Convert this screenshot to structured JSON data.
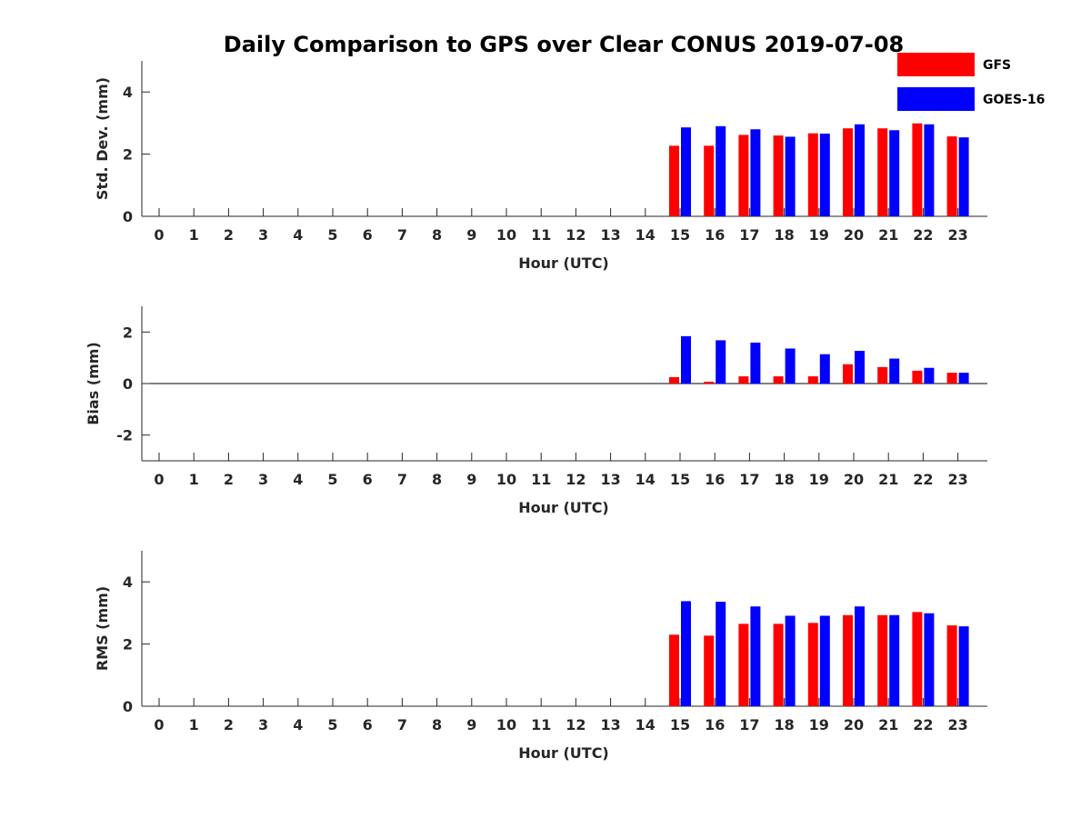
{
  "chart_data": {
    "type": "bar",
    "title": "Daily Comparison to GPS over Clear CONUS 2019-07-08",
    "categories": [
      "0",
      "1",
      "2",
      "3",
      "4",
      "5",
      "6",
      "7",
      "8",
      "9",
      "10",
      "11",
      "12",
      "13",
      "14",
      "15",
      "16",
      "17",
      "18",
      "19",
      "20",
      "21",
      "22",
      "23"
    ],
    "legend": {
      "position": "top-right",
      "entries": [
        "GFS",
        "GOES-16"
      ]
    },
    "colors": {
      "GFS": "#ff0000",
      "GOES-16": "#0000ff",
      "axis": "#262626"
    },
    "panels": [
      {
        "ylabel": "Std. Dev. (mm)",
        "xlabel": "Hour (UTC)",
        "ylim": [
          0,
          5
        ],
        "yticks": [
          0,
          2,
          4
        ],
        "zero_line": false,
        "series": [
          {
            "name": "GFS",
            "values": [
              null,
              null,
              null,
              null,
              null,
              null,
              null,
              null,
              null,
              null,
              null,
              null,
              null,
              null,
              null,
              2.27,
              2.27,
              2.62,
              2.6,
              2.67,
              2.83,
              2.83,
              2.99,
              2.57
            ]
          },
          {
            "name": "GOES-16",
            "values": [
              null,
              null,
              null,
              null,
              null,
              null,
              null,
              null,
              null,
              null,
              null,
              null,
              null,
              null,
              null,
              2.86,
              2.9,
              2.8,
              2.56,
              2.66,
              2.96,
              2.77,
              2.96,
              2.54
            ]
          }
        ]
      },
      {
        "ylabel": "Bias (mm)",
        "xlabel": "Hour (UTC)",
        "ylim": [
          -3,
          3
        ],
        "yticks": [
          -2,
          0,
          2
        ],
        "zero_line": true,
        "series": [
          {
            "name": "GFS",
            "values": [
              null,
              null,
              null,
              null,
              null,
              null,
              null,
              null,
              null,
              null,
              null,
              null,
              null,
              null,
              null,
              0.25,
              0.07,
              0.28,
              0.28,
              0.28,
              0.75,
              0.64,
              0.5,
              0.42
            ]
          },
          {
            "name": "GOES-16",
            "values": [
              null,
              null,
              null,
              null,
              null,
              null,
              null,
              null,
              null,
              null,
              null,
              null,
              null,
              null,
              null,
              1.84,
              1.68,
              1.59,
              1.36,
              1.14,
              1.27,
              0.97,
              0.61,
              0.42
            ]
          }
        ]
      },
      {
        "ylabel": "RMS (mm)",
        "xlabel": "Hour (UTC)",
        "ylim": [
          0,
          5
        ],
        "yticks": [
          0,
          2,
          4
        ],
        "zero_line": false,
        "series": [
          {
            "name": "GFS",
            "values": [
              null,
              null,
              null,
              null,
              null,
              null,
              null,
              null,
              null,
              null,
              null,
              null,
              null,
              null,
              null,
              2.3,
              2.27,
              2.65,
              2.65,
              2.68,
              2.93,
              2.93,
              3.03,
              2.6
            ]
          },
          {
            "name": "GOES-16",
            "values": [
              null,
              null,
              null,
              null,
              null,
              null,
              null,
              null,
              null,
              null,
              null,
              null,
              null,
              null,
              null,
              3.38,
              3.36,
              3.21,
              2.91,
              2.91,
              3.21,
              2.93,
              2.99,
              2.57
            ]
          }
        ]
      }
    ]
  }
}
